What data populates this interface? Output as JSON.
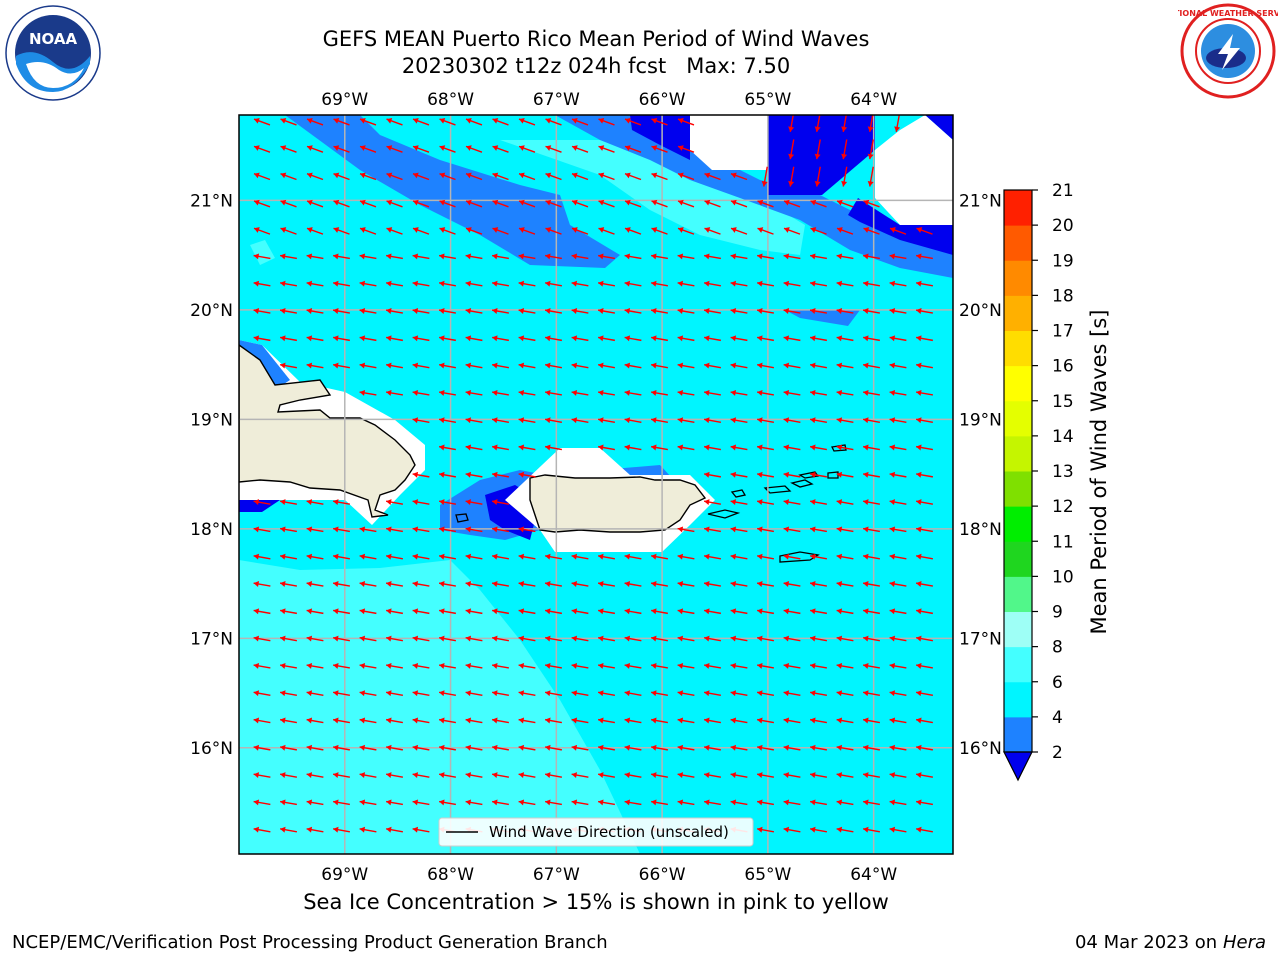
{
  "title": "GEFS MEAN Puerto Rico Mean Period of Wind Waves",
  "subtitle_line": "20230302 t12z 024h fcst",
  "max_label": "Max: 7.50",
  "ice_note": "Sea Ice Concentration > 15% is shown in pink to yellow",
  "footer_left": "NCEP/EMC/Verification Post Processing Product Generation Branch",
  "footer_date": "04 Mar 2023 on",
  "footer_machine": "Hera",
  "legend_label": "Wind Wave Direction (unscaled)",
  "colorbar": {
    "label": "Mean Period of Wind Waves [s]",
    "ticks": [
      "2",
      "4",
      "6",
      "8",
      "9",
      "10",
      "11",
      "12",
      "13",
      "14",
      "15",
      "16",
      "17",
      "18",
      "19",
      "20",
      "21"
    ],
    "colors": [
      "#0000ee",
      "#1e82ff",
      "#00f5ff",
      "#44ffff",
      "#9efff6",
      "#51f78a",
      "#1fd61f",
      "#00ee00",
      "#7fe000",
      "#c5f500",
      "#e4ff00",
      "#ffff00",
      "#ffdd00",
      "#ffb000",
      "#ff8a00",
      "#ff5a00",
      "#ff2000",
      "#ff0000"
    ]
  },
  "axes": {
    "lon_ticks": [
      "69°W",
      "68°W",
      "67°W",
      "66°W",
      "65°W",
      "64°W"
    ],
    "lat_ticks": [
      "21°N",
      "20°N",
      "19°N",
      "18°N",
      "17°N",
      "16°N"
    ]
  },
  "logos": {
    "left": "NOAA",
    "right": "NATIONAL WEATHER SERVICE"
  }
}
